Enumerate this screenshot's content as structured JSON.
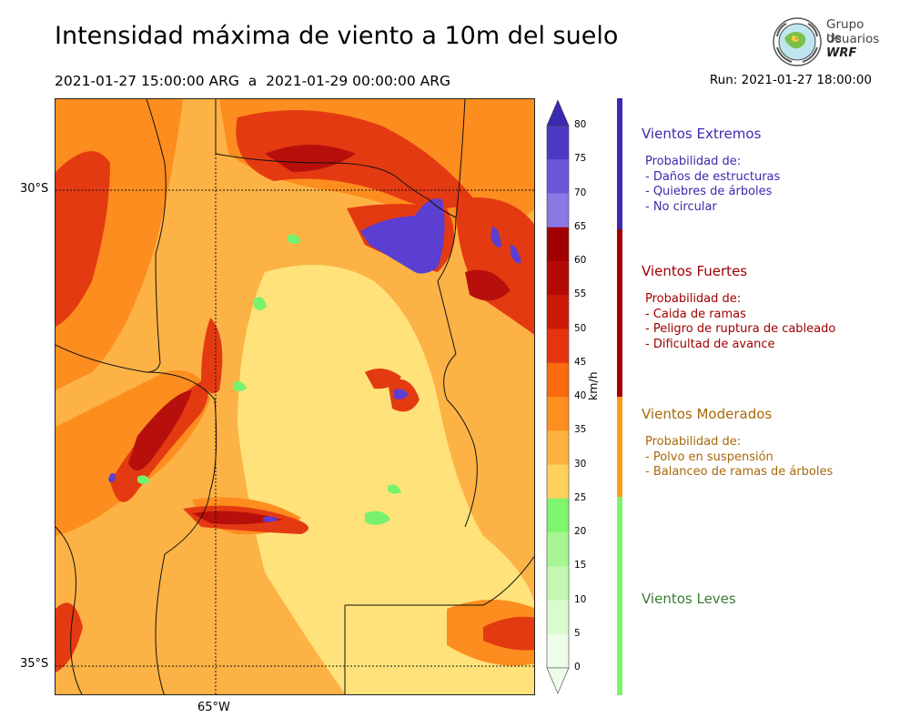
{
  "header": {
    "title": "Intensidad máxima de viento a 10m del suelo",
    "period": "2021-01-27 15:00:00 ARG  a  2021-01-29 00:00:00 ARG",
    "run": "Run: 2021-01-27 18:00:00"
  },
  "logo": {
    "line1": "Grupo de",
    "line2": "Usuarios",
    "line3": "WRF"
  },
  "map": {
    "lat_labels": [
      "30°S",
      "35°S"
    ],
    "lon_labels": [
      "65°W"
    ],
    "palette": {
      "bg": "#fdb245",
      "yellow": "#ffe27a",
      "orange": "#fd8d1e",
      "red": "#e43a12",
      "darkred": "#b7100c",
      "purple": "#5a3fd0",
      "green": "#77f26f"
    }
  },
  "colorbar": {
    "unit": "km/h",
    "ticks": [
      "80",
      "75",
      "70",
      "65",
      "60",
      "55",
      "50",
      "45",
      "40",
      "35",
      "30",
      "25",
      "20",
      "15",
      "10",
      "5",
      "0"
    ],
    "colors": [
      "#3a2ab0",
      "#4d3ac4",
      "#6a57d8",
      "#8a78e4",
      "#a00000",
      "#b40a06",
      "#cc1a08",
      "#e43510",
      "#fb6a0e",
      "#fd8f1f",
      "#fdb13e",
      "#fed05c",
      "#7df56e",
      "#a6f592",
      "#c3f7b2",
      "#dafad0",
      "#eefdea"
    ]
  },
  "legend": {
    "bar_colors": [
      "#3a2ab0",
      "#a00000",
      "#fd9a1c",
      "#7ef26f"
    ],
    "categories": [
      {
        "heading": "Vientos Extremos",
        "color": "#3a2ab0",
        "items": [
          "Probabilidad de:",
          "- Daños de estructuras",
          "- Quiebres de árboles",
          "- No circular"
        ]
      },
      {
        "heading": "Vientos Fuertes",
        "color": "#a00000",
        "items": [
          "Probabilidad de:",
          "- Caida de ramas",
          "- Peligro de ruptura de cableado",
          "- Dificultad de avance"
        ]
      },
      {
        "heading": "Vientos Moderados",
        "color": "#a8680a",
        "items": [
          "Probabilidad de:",
          "- Polvo en suspensión",
          "- Balanceo de ramas de árboles"
        ]
      },
      {
        "heading": "Vientos Leves",
        "color": "#3a7d33",
        "items": []
      }
    ]
  }
}
